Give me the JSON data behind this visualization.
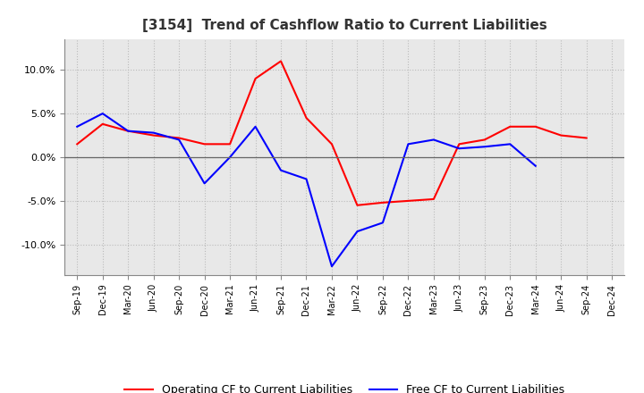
{
  "title": "[3154]  Trend of Cashflow Ratio to Current Liabilities",
  "x_labels": [
    "Sep-19",
    "Dec-19",
    "Mar-20",
    "Jun-20",
    "Sep-20",
    "Dec-20",
    "Mar-21",
    "Jun-21",
    "Sep-21",
    "Dec-21",
    "Mar-22",
    "Jun-22",
    "Sep-22",
    "Dec-22",
    "Mar-23",
    "Jun-23",
    "Sep-23",
    "Dec-23",
    "Mar-24",
    "Jun-24",
    "Sep-24",
    "Dec-24"
  ],
  "operating_cf": [
    1.5,
    3.8,
    3.0,
    2.5,
    2.2,
    1.5,
    1.5,
    9.0,
    11.0,
    4.5,
    1.5,
    -5.5,
    -5.2,
    -5.0,
    -4.8,
    1.5,
    2.0,
    3.5,
    3.5,
    2.5,
    2.2,
    null
  ],
  "free_cf": [
    3.5,
    5.0,
    3.0,
    2.8,
    2.0,
    -3.0,
    0.0,
    3.5,
    -1.5,
    -2.5,
    -12.5,
    -8.5,
    -7.5,
    1.5,
    2.0,
    1.0,
    1.2,
    1.5,
    -1.0,
    null,
    null,
    null
  ],
  "ylim": [
    -13.5,
    13.5
  ],
  "yticks": [
    -10,
    -5,
    0,
    5,
    10
  ],
  "operating_color": "#FF0000",
  "free_color": "#0000FF",
  "background_color": "#FFFFFF",
  "plot_bg_color": "#E8E8E8",
  "grid_color": "#BBBBBB",
  "legend_labels": [
    "Operating CF to Current Liabilities",
    "Free CF to Current Liabilities"
  ]
}
